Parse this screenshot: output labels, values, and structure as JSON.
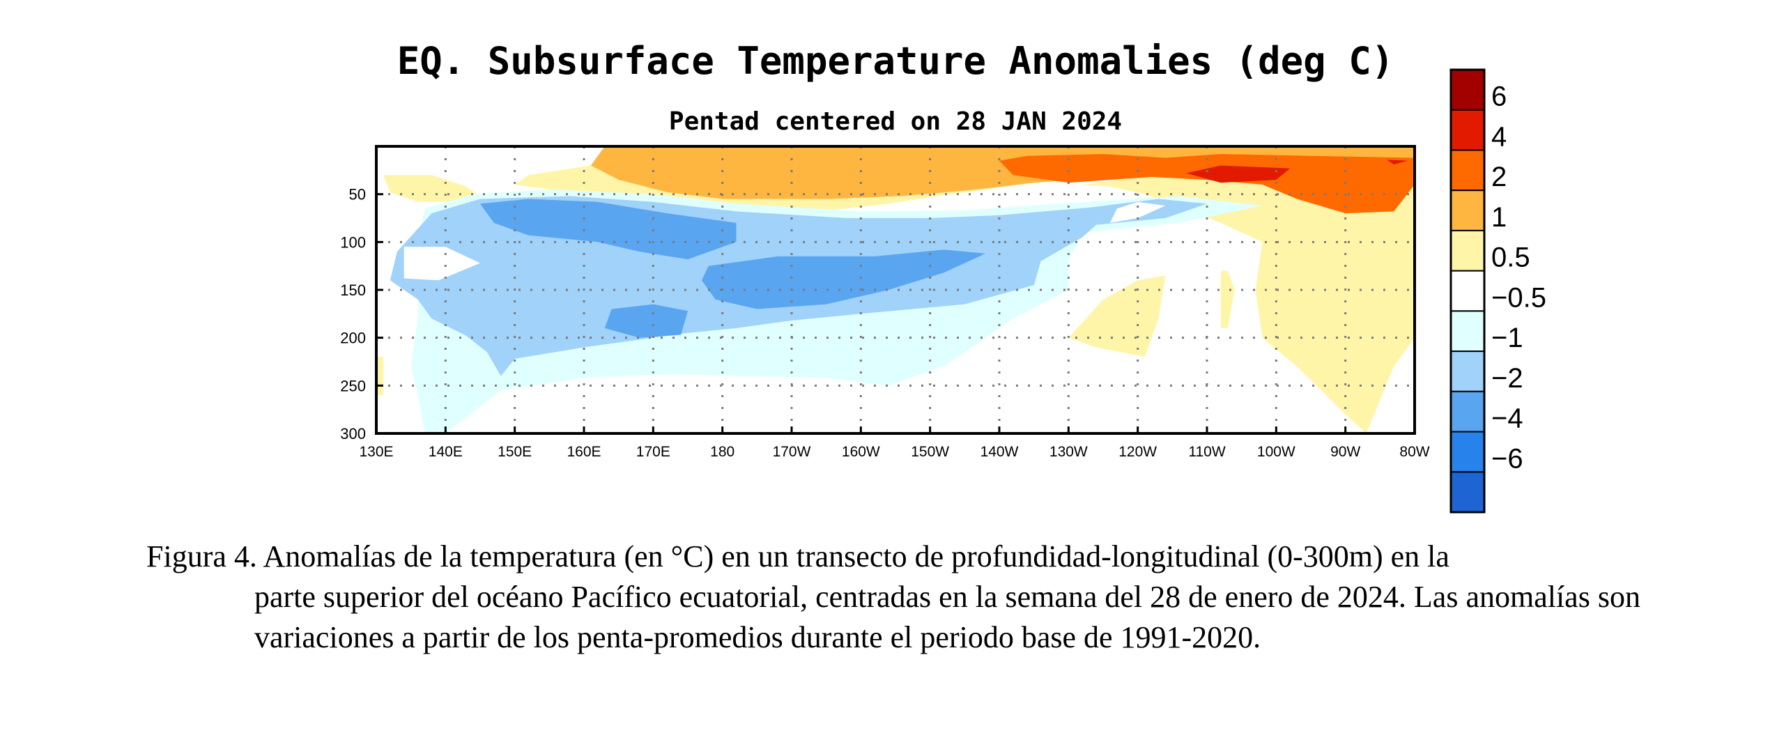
{
  "chart_data": {
    "type": "heatmap",
    "title": "EQ. Subsurface Temperature Anomalies (deg C)",
    "subtitle": "Pentad centered on 28 JAN 2024",
    "x_ticks": [
      "130E",
      "140E",
      "150E",
      "160E",
      "170E",
      "180",
      "170W",
      "160W",
      "150W",
      "140W",
      "130W",
      "120W",
      "110W",
      "100W",
      "90W",
      "80W"
    ],
    "y_ticks": [
      "50",
      "100",
      "150",
      "200",
      "250",
      "300"
    ],
    "xlim": [
      130,
      280
    ],
    "ylim": [
      0,
      300
    ],
    "grid": true,
    "colorbar": {
      "labels": [
        "6",
        "4",
        "2",
        "1",
        "0.5",
        "−0.5",
        "−1",
        "−2",
        "−4",
        "−6"
      ],
      "colors": [
        "#a30000",
        "#e21a00",
        "#ff6a00",
        "#ffb640",
        "#fff5a8",
        "#ffffff",
        "#e0ffff",
        "#a0d2fa",
        "#5aa5f0",
        "#2882eb",
        "#1e64d2"
      ]
    },
    "regions": [
      {
        "level": "1 to 2",
        "color": "#ffb640",
        "points": [
          [
            163,
            0
          ],
          [
            280,
            0
          ],
          [
            280,
            16
          ],
          [
            255,
            18
          ],
          [
            244,
            28
          ],
          [
            225,
            38
          ],
          [
            217,
            45
          ],
          [
            206,
            52
          ],
          [
            196,
            55
          ],
          [
            180,
            55
          ],
          [
            172,
            48
          ],
          [
            165,
            35
          ],
          [
            161,
            20
          ]
        ]
      },
      {
        "level": "0.5 to 1",
        "color": "#fff5a8",
        "points": [
          [
            131,
            30
          ],
          [
            138,
            30
          ],
          [
            143,
            42
          ],
          [
            145,
            52
          ],
          [
            142,
            58
          ],
          [
            136,
            58
          ],
          [
            132,
            48
          ]
        ]
      },
      {
        "level": "0.5 to 1",
        "color": "#fff5a8",
        "points": [
          [
            161,
            20
          ],
          [
            165,
            35
          ],
          [
            172,
            48
          ],
          [
            180,
            55
          ],
          [
            196,
            55
          ],
          [
            206,
            52
          ],
          [
            217,
            45
          ],
          [
            225,
            38
          ],
          [
            213,
            50
          ],
          [
            204,
            60
          ],
          [
            194,
            68
          ],
          [
            180,
            66
          ],
          [
            170,
            62
          ],
          [
            158,
            48
          ],
          [
            150,
            40
          ],
          [
            152,
            30
          ]
        ]
      },
      {
        "level": "0.5 to 1",
        "color": "#fff5a8",
        "points": [
          [
            255,
            18
          ],
          [
            270,
            30
          ],
          [
            280,
            40
          ],
          [
            280,
            200
          ],
          [
            277,
            230
          ],
          [
            273,
            300
          ],
          [
            270,
            280
          ],
          [
            263,
            230
          ],
          [
            258,
            200
          ],
          [
            257,
            150
          ],
          [
            258,
            100
          ],
          [
            252,
            80
          ],
          [
            248,
            68
          ],
          [
            241,
            50
          ],
          [
            236,
            42
          ],
          [
            232,
            40
          ]
        ]
      },
      {
        "level": "0.5 to 1",
        "color": "#fff5a8",
        "points": [
          [
            240,
            140
          ],
          [
            244,
            135
          ],
          [
            243,
            180
          ],
          [
            241,
            220
          ],
          [
            234,
            210
          ],
          [
            230,
            200
          ],
          [
            235,
            160
          ]
        ]
      },
      {
        "level": "0.5 to 1",
        "color": "#fff5a8",
        "points": [
          [
            252,
            130
          ],
          [
            253,
            130
          ],
          [
            254,
            150
          ],
          [
            253,
            190
          ],
          [
            252,
            190
          ]
        ]
      },
      {
        "level": "0.5 to 1",
        "color": "#fff5a8",
        "points": [
          [
            130,
            220
          ],
          [
            131,
            220
          ],
          [
            131,
            260
          ],
          [
            130,
            260
          ]
        ]
      },
      {
        "level": "2 to 4",
        "color": "#ff6a00",
        "points": [
          [
            220,
            15
          ],
          [
            224,
            10
          ],
          [
            235,
            8
          ],
          [
            244,
            12
          ],
          [
            252,
            8
          ],
          [
            265,
            10
          ],
          [
            280,
            12
          ],
          [
            280,
            40
          ],
          [
            277,
            68
          ],
          [
            270,
            70
          ],
          [
            263,
            55
          ],
          [
            258,
            40
          ],
          [
            250,
            35
          ],
          [
            242,
            32
          ],
          [
            230,
            38
          ],
          [
            222,
            30
          ]
        ]
      },
      {
        "level": "4 to 6",
        "color": "#e21a00",
        "points": [
          [
            247,
            28
          ],
          [
            252,
            20
          ],
          [
            262,
            23
          ],
          [
            260,
            35
          ],
          [
            252,
            38
          ]
        ]
      },
      {
        "level": "4 to 6",
        "color": "#e21a00",
        "points": [
          [
            276,
            14
          ],
          [
            279,
            15
          ],
          [
            277,
            19
          ]
        ]
      },
      {
        "level": "-0.5 to -1",
        "color": "#e0ffff",
        "points": [
          [
            137,
            65
          ],
          [
            144,
            50
          ],
          [
            155,
            45
          ],
          [
            170,
            50
          ],
          [
            182,
            60
          ],
          [
            200,
            68
          ],
          [
            215,
            67
          ],
          [
            228,
            60
          ],
          [
            246,
            52
          ],
          [
            258,
            62
          ],
          [
            246,
            80
          ],
          [
            232,
            90
          ],
          [
            230,
            120
          ],
          [
            230,
            150
          ],
          [
            222,
            180
          ],
          [
            212,
            230
          ],
          [
            204,
            250
          ],
          [
            195,
            242
          ],
          [
            182,
            240
          ],
          [
            173,
            238
          ],
          [
            160,
            242
          ],
          [
            148,
            255
          ],
          [
            140,
            300
          ],
          [
            137,
            300
          ],
          [
            136,
            260
          ],
          [
            135,
            230
          ],
          [
            136,
            180
          ],
          [
            136,
            130
          ],
          [
            136,
            100
          ]
        ]
      },
      {
        "level": "-1 to -2",
        "color": "#a0d2fa",
        "points": [
          [
            133,
            110
          ],
          [
            138,
            70
          ],
          [
            145,
            55
          ],
          [
            158,
            52
          ],
          [
            170,
            58
          ],
          [
            182,
            68
          ],
          [
            198,
            75
          ],
          [
            210,
            75
          ],
          [
            220,
            72
          ],
          [
            233,
            64
          ],
          [
            243,
            55
          ],
          [
            250,
            60
          ],
          [
            244,
            75
          ],
          [
            234,
            82
          ],
          [
            232,
            95
          ],
          [
            226,
            120
          ],
          [
            225,
            145
          ],
          [
            215,
            165
          ],
          [
            200,
            175
          ],
          [
            190,
            182
          ],
          [
            182,
            190
          ],
          [
            175,
            195
          ],
          [
            168,
            202
          ],
          [
            160,
            210
          ],
          [
            150,
            222
          ],
          [
            148,
            240
          ],
          [
            146,
            215
          ],
          [
            143,
            198
          ],
          [
            138,
            180
          ],
          [
            136,
            160
          ],
          [
            132,
            140
          ]
        ]
      },
      {
        "level": "-2 to -4",
        "color": "#5aa5f0",
        "points": [
          [
            145,
            60
          ],
          [
            152,
            55
          ],
          [
            162,
            58
          ],
          [
            172,
            70
          ],
          [
            182,
            80
          ],
          [
            182,
            100
          ],
          [
            175,
            118
          ],
          [
            168,
            110
          ],
          [
            162,
            100
          ],
          [
            152,
            93
          ],
          [
            147,
            80
          ]
        ]
      },
      {
        "level": "-2 to -4",
        "color": "#5aa5f0",
        "points": [
          [
            178,
            125
          ],
          [
            188,
            115
          ],
          [
            202,
            115
          ],
          [
            212,
            108
          ],
          [
            218,
            112
          ],
          [
            212,
            132
          ],
          [
            204,
            150
          ],
          [
            195,
            165
          ],
          [
            185,
            170
          ],
          [
            179,
            160
          ],
          [
            177,
            140
          ]
        ]
      },
      {
        "level": "-2 to -4",
        "color": "#5aa5f0",
        "points": [
          [
            164,
            170
          ],
          [
            170,
            165
          ],
          [
            175,
            172
          ],
          [
            174,
            197
          ],
          [
            168,
            200
          ],
          [
            163,
            190
          ]
        ]
      },
      {
        "level": "0.5 to -0.5",
        "color": "#ffffff",
        "points": [
          [
            134,
            105
          ],
          [
            140,
            105
          ],
          [
            145,
            122
          ],
          [
            139,
            140
          ],
          [
            134,
            138
          ]
        ]
      },
      {
        "level": "0.5 to -0.5",
        "color": "#ffffff",
        "points": [
          [
            237,
            65
          ],
          [
            240,
            58
          ],
          [
            244,
            62
          ],
          [
            240,
            75
          ],
          [
            236,
            80
          ]
        ]
      }
    ]
  },
  "caption": {
    "first_line": "Figura 4. Anomalías de la temperatura (en °C) en un transecto de profundidad-longitudinal (0-300m) en la",
    "rest": "parte superior del océano Pacífico ecuatorial, centradas en la semana del 28 de enero de 2024. Las anomalías son variaciones a partir de los penta-promedios durante el periodo base de 1991-2020."
  }
}
